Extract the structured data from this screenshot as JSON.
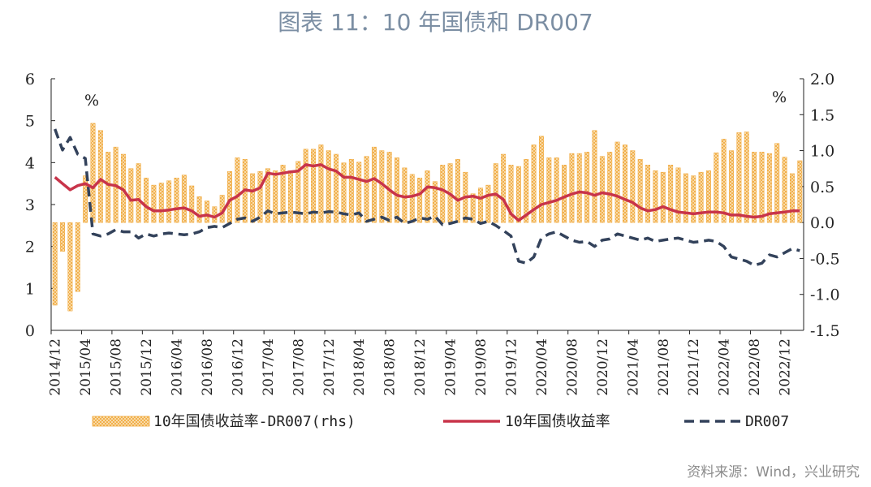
{
  "title": "图表 11：10 年国债和 DR007",
  "source": "资料来源：Wind，兴业研究",
  "colors": {
    "spread": "#f0a83a",
    "yield": "#c8344a",
    "dr007": "#33425b"
  },
  "chart_data": {
    "type": "bar+line",
    "left_unit": "%",
    "right_unit": "%",
    "ylim_left": [
      0,
      6
    ],
    "ylim_right": [
      -1.5,
      2.0
    ],
    "yticks_left": [
      "0",
      "1",
      "2",
      "3",
      "4",
      "5",
      "6"
    ],
    "yticks_right": [
      "-1.5",
      "-1.0",
      "-0.5",
      "0.0",
      "0.5",
      "1.0",
      "1.5",
      "2.0"
    ],
    "xticks": [
      "2014/12",
      "2015/04",
      "2015/08",
      "2015/12",
      "2016/04",
      "2016/08",
      "2016/12",
      "2017/04",
      "2017/08",
      "2017/12",
      "2018/04",
      "2018/08",
      "2018/12",
      "2019/04",
      "2019/08",
      "2019/12",
      "2020/04",
      "2020/08",
      "2020/12",
      "2021/04",
      "2021/08",
      "2021/12",
      "2022/04",
      "2022/08",
      "2022/12"
    ],
    "legend": [
      "10年国债收益率-DR007(rhs)",
      "10年国债收益率",
      "DR007"
    ],
    "series": [
      {
        "name": "10年国债收益率-DR007(rhs)",
        "axis": "right",
        "type": "bar",
        "values": [
          -1.15,
          -0.4,
          -1.23,
          -0.96,
          0.65,
          1.38,
          1.28,
          0.98,
          1.05,
          0.95,
          0.75,
          0.82,
          0.62,
          0.52,
          0.55,
          0.58,
          0.62,
          0.66,
          0.51,
          0.36,
          0.3,
          0.22,
          0.38,
          0.71,
          0.9,
          0.88,
          0.68,
          0.71,
          0.75,
          0.72,
          0.8,
          0.72,
          0.85,
          1.02,
          1.02,
          1.08,
          1.0,
          0.95,
          0.83,
          0.88,
          0.84,
          0.92,
          1.05,
          1.0,
          0.98,
          0.9,
          0.76,
          0.67,
          0.62,
          0.72,
          0.57,
          0.8,
          0.82,
          0.88,
          0.7,
          0.4,
          0.48,
          0.52,
          0.82,
          0.95,
          0.8,
          0.78,
          0.88,
          1.08,
          1.2,
          0.9,
          0.9,
          0.8,
          0.96,
          0.96,
          0.98,
          1.28,
          0.92,
          0.98,
          1.12,
          1.08,
          1.0,
          0.88,
          0.8,
          0.72,
          0.7,
          0.8,
          0.76,
          0.68,
          0.65,
          0.7,
          0.72,
          0.97,
          1.16,
          1.0,
          1.25,
          1.26,
          0.98,
          0.98,
          0.96,
          1.1,
          0.91,
          0.68,
          0.86
        ]
      },
      {
        "name": "10年国债收益率",
        "axis": "left",
        "type": "line",
        "values": [
          3.65,
          3.5,
          3.35,
          3.45,
          3.5,
          3.4,
          3.6,
          3.48,
          3.45,
          3.35,
          3.1,
          3.12,
          2.95,
          2.85,
          2.85,
          2.87,
          2.9,
          2.92,
          2.85,
          2.72,
          2.75,
          2.7,
          2.8,
          3.1,
          3.2,
          3.35,
          3.32,
          3.4,
          3.75,
          3.72,
          3.75,
          3.78,
          3.8,
          3.95,
          3.92,
          3.95,
          3.85,
          3.8,
          3.65,
          3.65,
          3.6,
          3.55,
          3.62,
          3.5,
          3.35,
          3.22,
          3.18,
          3.2,
          3.25,
          3.42,
          3.4,
          3.35,
          3.25,
          3.1,
          3.18,
          3.2,
          3.15,
          3.22,
          3.25,
          3.12,
          2.78,
          2.62,
          2.75,
          2.88,
          3.0,
          3.05,
          3.1,
          3.18,
          3.25,
          3.3,
          3.28,
          3.22,
          3.28,
          3.25,
          3.2,
          3.12,
          3.05,
          2.92,
          2.85,
          2.88,
          2.95,
          2.88,
          2.82,
          2.8,
          2.78,
          2.8,
          2.82,
          2.82,
          2.8,
          2.75,
          2.75,
          2.72,
          2.7,
          2.72,
          2.78,
          2.8,
          2.82,
          2.85,
          2.85
        ]
      },
      {
        "name": "DR007",
        "axis": "left",
        "type": "line",
        "values": [
          4.8,
          4.3,
          4.6,
          4.2,
          4.1,
          2.3,
          2.25,
          2.3,
          2.4,
          2.35,
          2.35,
          2.2,
          2.3,
          2.25,
          2.3,
          2.32,
          2.3,
          2.28,
          2.3,
          2.35,
          2.45,
          2.48,
          2.45,
          2.55,
          2.65,
          2.68,
          2.6,
          2.7,
          2.85,
          2.78,
          2.8,
          2.82,
          2.8,
          2.78,
          2.82,
          2.8,
          2.83,
          2.82,
          2.78,
          2.75,
          2.8,
          2.6,
          2.65,
          2.7,
          2.62,
          2.7,
          2.55,
          2.6,
          2.68,
          2.65,
          2.72,
          2.52,
          2.55,
          2.6,
          2.68,
          2.65,
          2.55,
          2.6,
          2.5,
          2.38,
          2.25,
          1.65,
          1.6,
          1.75,
          2.2,
          2.3,
          2.35,
          2.25,
          2.15,
          2.1,
          2.12,
          2.0,
          2.15,
          2.18,
          2.3,
          2.25,
          2.2,
          2.15,
          2.2,
          2.12,
          2.15,
          2.18,
          2.2,
          2.15,
          2.1,
          2.12,
          2.15,
          2.12,
          2.0,
          1.75,
          1.7,
          1.65,
          1.55,
          1.6,
          1.8,
          1.75,
          1.85,
          1.95,
          1.9
        ]
      }
    ]
  }
}
